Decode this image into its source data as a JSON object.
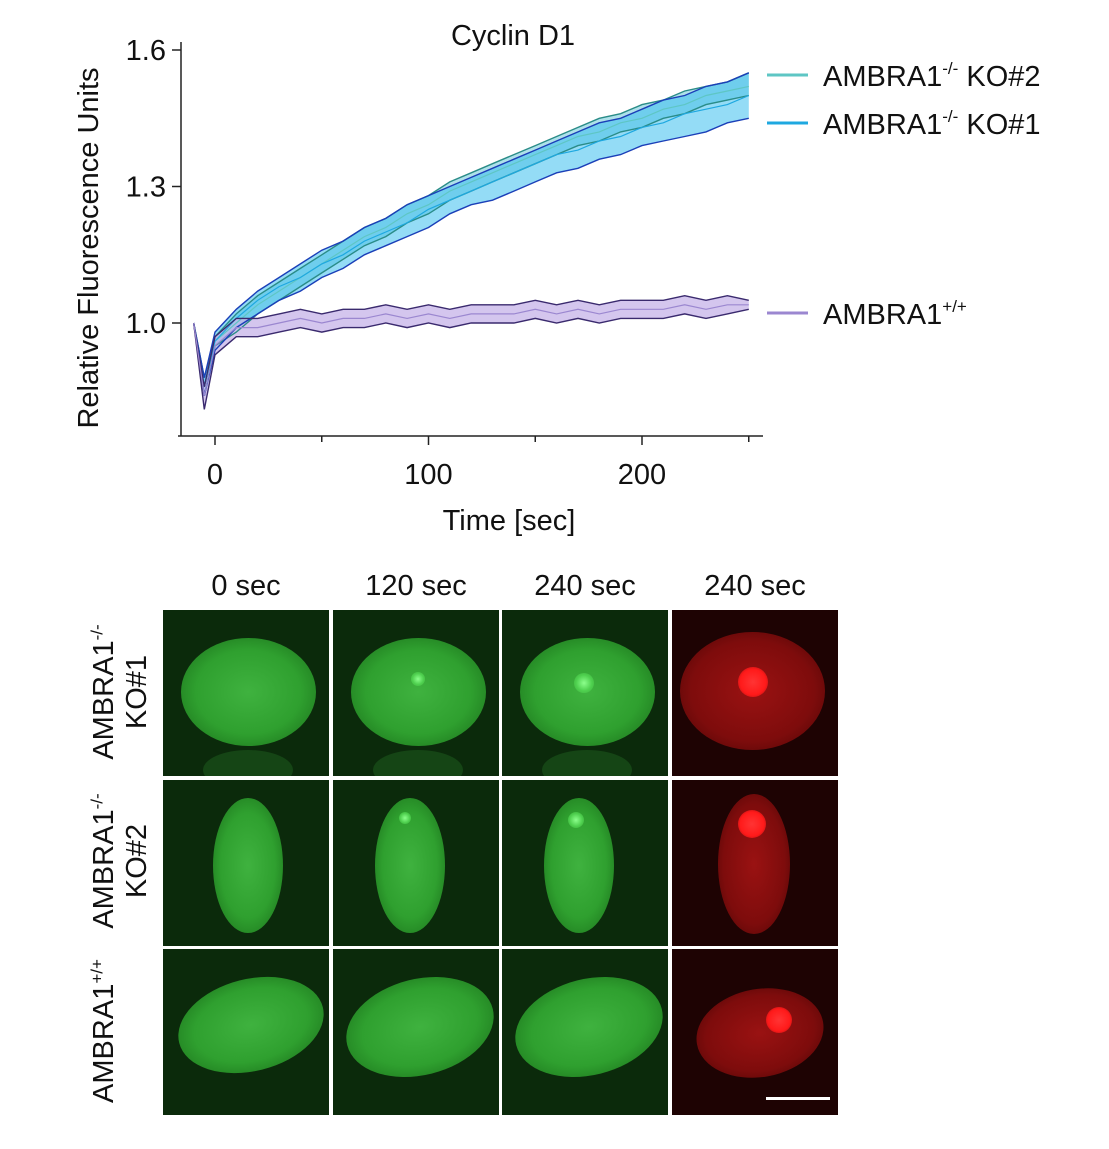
{
  "chart_data": {
    "type": "line",
    "title": "Cyclin D1",
    "xlabel": "Time [sec]",
    "ylabel": "Relative Fluorescence Units",
    "xlim": [
      -10,
      250
    ],
    "ylim": [
      0.75,
      1.6
    ],
    "xticks": [
      0,
      100,
      200
    ],
    "yticks": [
      1.0,
      1.3,
      1.6
    ],
    "ytick_labels": [
      "1.0",
      "1.3",
      "1.6"
    ],
    "legend_placement": "right",
    "x": [
      -10,
      -5,
      0,
      10,
      20,
      30,
      40,
      50,
      60,
      70,
      80,
      90,
      100,
      110,
      120,
      130,
      140,
      150,
      160,
      170,
      180,
      190,
      200,
      210,
      220,
      230,
      240,
      250
    ],
    "series": [
      {
        "name": "AMBRA1-/- KO#2",
        "name_base": "AMBRA1",
        "name_sup": "-/-",
        "name_suffix": " KO#2",
        "color": "#5ec6c4",
        "band": "#6cc9d8",
        "mean": [
          1.0,
          0.86,
          0.96,
          1.0,
          1.04,
          1.07,
          1.1,
          1.13,
          1.16,
          1.19,
          1.21,
          1.24,
          1.26,
          1.29,
          1.31,
          1.33,
          1.35,
          1.37,
          1.39,
          1.41,
          1.42,
          1.44,
          1.45,
          1.47,
          1.48,
          1.5,
          1.51,
          1.52
        ],
        "upper": [
          1.0,
          0.88,
          0.97,
          1.02,
          1.06,
          1.09,
          1.12,
          1.15,
          1.18,
          1.21,
          1.23,
          1.26,
          1.28,
          1.31,
          1.33,
          1.35,
          1.37,
          1.39,
          1.41,
          1.43,
          1.45,
          1.46,
          1.48,
          1.49,
          1.51,
          1.52,
          1.53,
          1.55
        ],
        "lower": [
          1.0,
          0.84,
          0.95,
          0.98,
          1.02,
          1.05,
          1.08,
          1.11,
          1.14,
          1.17,
          1.19,
          1.22,
          1.24,
          1.27,
          1.29,
          1.31,
          1.33,
          1.35,
          1.37,
          1.39,
          1.4,
          1.42,
          1.43,
          1.45,
          1.46,
          1.48,
          1.49,
          1.5
        ]
      },
      {
        "name": "AMBRA1-/- KO#1",
        "name_base": "AMBRA1",
        "name_sup": "-/-",
        "name_suffix": " KO#1",
        "color": "#1ea8e0",
        "band": "#3cc0ee",
        "mean": [
          1.0,
          0.86,
          0.96,
          1.01,
          1.05,
          1.08,
          1.1,
          1.13,
          1.15,
          1.18,
          1.2,
          1.22,
          1.25,
          1.27,
          1.29,
          1.31,
          1.33,
          1.35,
          1.37,
          1.38,
          1.4,
          1.41,
          1.43,
          1.44,
          1.46,
          1.47,
          1.48,
          1.5
        ],
        "upper": [
          1.0,
          0.88,
          0.98,
          1.03,
          1.07,
          1.1,
          1.13,
          1.16,
          1.18,
          1.21,
          1.23,
          1.26,
          1.28,
          1.3,
          1.32,
          1.34,
          1.36,
          1.38,
          1.4,
          1.42,
          1.44,
          1.45,
          1.47,
          1.49,
          1.5,
          1.52,
          1.53,
          1.55
        ],
        "lower": [
          1.0,
          0.84,
          0.94,
          0.99,
          1.02,
          1.05,
          1.07,
          1.1,
          1.12,
          1.15,
          1.17,
          1.19,
          1.21,
          1.24,
          1.26,
          1.27,
          1.29,
          1.31,
          1.33,
          1.34,
          1.36,
          1.37,
          1.39,
          1.4,
          1.41,
          1.42,
          1.44,
          1.45
        ]
      },
      {
        "name": "AMBRA1+/+",
        "name_base": "AMBRA1",
        "name_sup": "+/+",
        "name_suffix": "",
        "color": "#9b87d0",
        "band": "#c9b8ea",
        "mean": [
          1.0,
          0.84,
          0.95,
          0.99,
          0.99,
          1.0,
          1.01,
          1.0,
          1.01,
          1.01,
          1.02,
          1.01,
          1.02,
          1.01,
          1.02,
          1.02,
          1.02,
          1.03,
          1.02,
          1.03,
          1.02,
          1.03,
          1.03,
          1.03,
          1.04,
          1.03,
          1.04,
          1.04
        ],
        "upper": [
          1.0,
          0.86,
          0.97,
          1.01,
          1.01,
          1.02,
          1.03,
          1.02,
          1.03,
          1.03,
          1.04,
          1.03,
          1.04,
          1.03,
          1.04,
          1.04,
          1.04,
          1.05,
          1.04,
          1.05,
          1.04,
          1.05,
          1.05,
          1.05,
          1.06,
          1.05,
          1.06,
          1.05
        ],
        "lower": [
          1.0,
          0.81,
          0.93,
          0.97,
          0.97,
          0.98,
          0.99,
          0.98,
          0.99,
          0.99,
          1.0,
          0.99,
          1.0,
          0.99,
          1.0,
          1.0,
          1.0,
          1.01,
          1.0,
          1.01,
          1.0,
          1.01,
          1.01,
          1.01,
          1.02,
          1.01,
          1.02,
          1.03
        ]
      }
    ]
  },
  "micrographs": {
    "columns": [
      "0 sec",
      "120 sec",
      "240 sec",
      "240 sec"
    ],
    "rows": [
      {
        "line1_base": "AMBRA1",
        "line1_sup": "-/-",
        "line2": "KO#1"
      },
      {
        "line1_base": "AMBRA1",
        "line1_sup": "-/-",
        "line2": "KO#2"
      },
      {
        "line1_base": "AMBRA1",
        "line1_sup": "+/+",
        "line2": ""
      }
    ],
    "channel_colors": {
      "green": "#2fa02f",
      "red": "#ff1a1a"
    }
  }
}
